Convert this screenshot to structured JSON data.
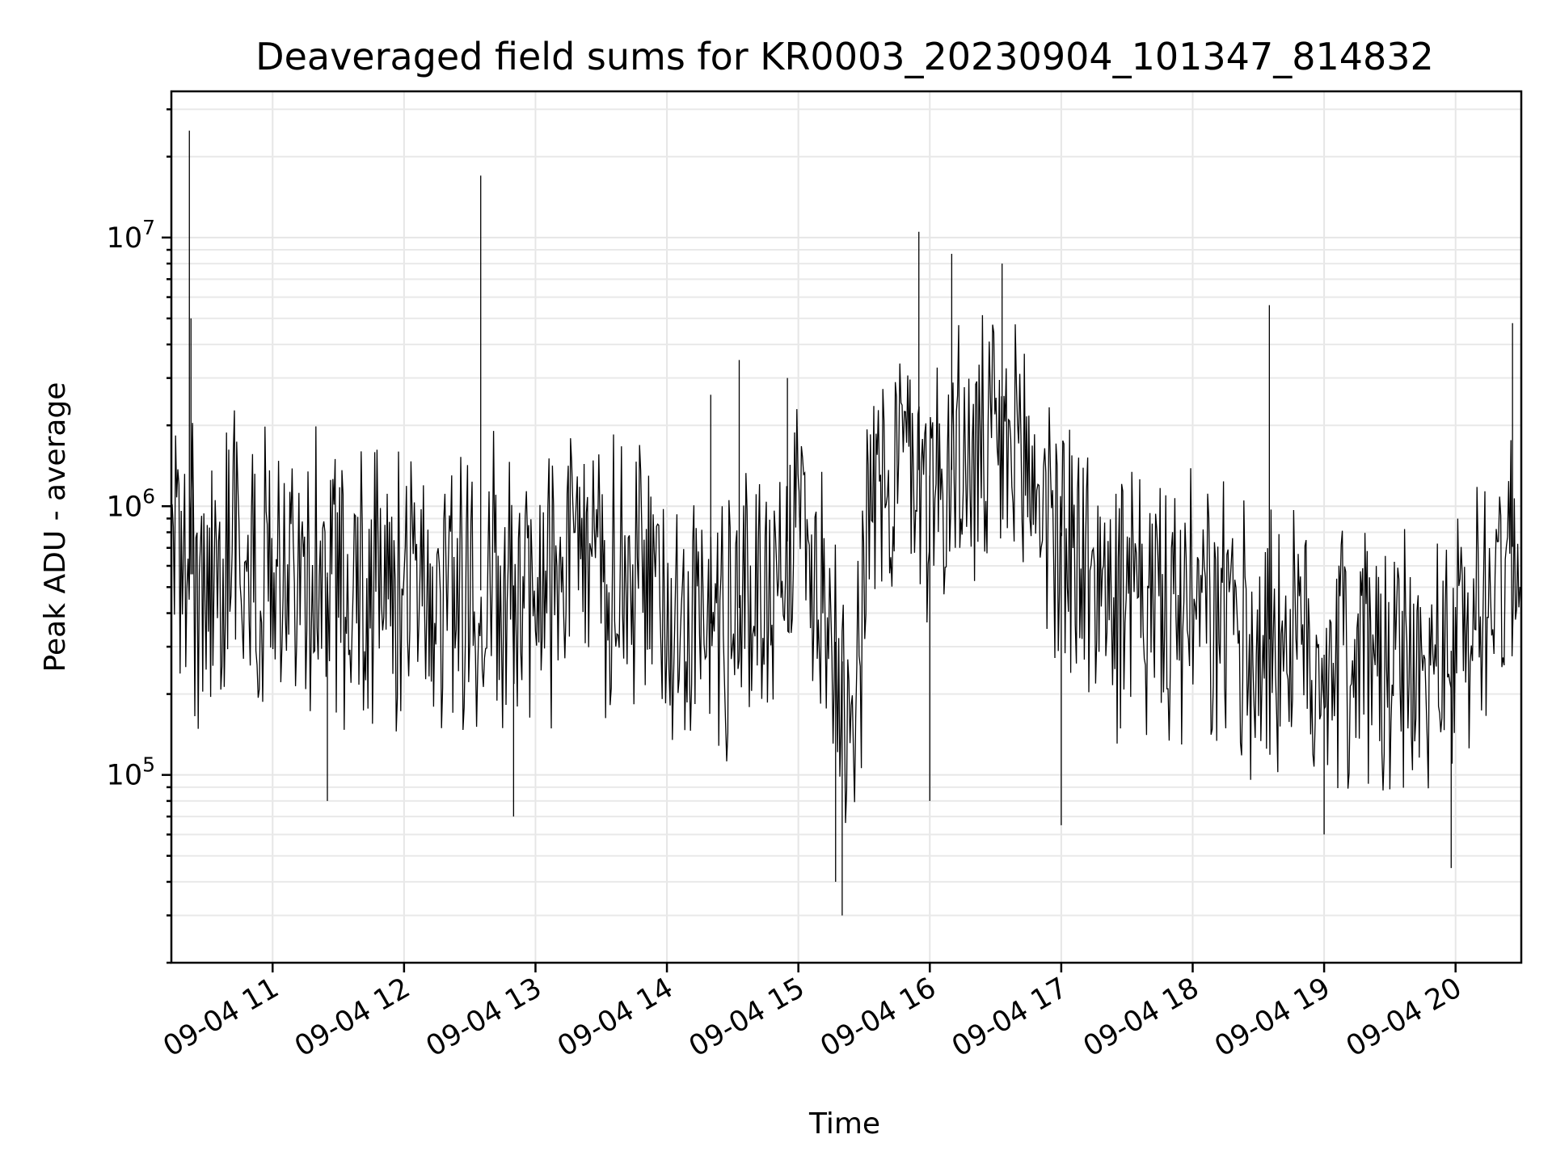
{
  "chart_data": {
    "type": "line",
    "title": "Deaveraged field sums for KR0003_20230904_101347_814832",
    "xlabel": "Time",
    "ylabel": "Peak ADU - average",
    "yscale": "log",
    "grid": true,
    "x_range": [
      "2023-09-04T10:13:47",
      "2023-09-04T20:30:00"
    ],
    "ylim": [
      20000,
      35000000
    ],
    "x_ticks": [
      {
        "time": "2023-09-04T11:00",
        "label": "09-04 11"
      },
      {
        "time": "2023-09-04T12:00",
        "label": "09-04 12"
      },
      {
        "time": "2023-09-04T13:00",
        "label": "09-04 13"
      },
      {
        "time": "2023-09-04T14:00",
        "label": "09-04 14"
      },
      {
        "time": "2023-09-04T15:00",
        "label": "09-04 15"
      },
      {
        "time": "2023-09-04T16:00",
        "label": "09-04 16"
      },
      {
        "time": "2023-09-04T17:00",
        "label": "09-04 17"
      },
      {
        "time": "2023-09-04T18:00",
        "label": "09-04 18"
      },
      {
        "time": "2023-09-04T19:00",
        "label": "09-04 19"
      },
      {
        "time": "2023-09-04T20:00",
        "label": "09-04 20"
      }
    ],
    "y_ticks": [
      {
        "value": 100000,
        "base": "10",
        "exp": "5"
      },
      {
        "value": 1000000,
        "base": "10",
        "exp": "6"
      },
      {
        "value": 10000000,
        "base": "10",
        "exp": "7"
      }
    ],
    "series": [
      {
        "color": "#000000",
        "x": [
          "2023-09-04T10:15",
          "2023-09-04T10:20",
          "2023-09-04T10:25",
          "2023-09-04T10:30",
          "2023-09-04T10:40",
          "2023-09-04T10:50",
          "2023-09-04T11:00",
          "2023-09-04T11:15",
          "2023-09-04T11:30",
          "2023-09-04T11:45",
          "2023-09-04T12:00",
          "2023-09-04T12:15",
          "2023-09-04T12:30",
          "2023-09-04T12:45",
          "2023-09-04T13:00",
          "2023-09-04T13:15",
          "2023-09-04T13:30",
          "2023-09-04T13:45",
          "2023-09-04T14:00",
          "2023-09-04T14:15",
          "2023-09-04T14:30",
          "2023-09-04T14:45",
          "2023-09-04T15:00",
          "2023-09-04T15:15",
          "2023-09-04T15:25",
          "2023-09-04T15:35",
          "2023-09-04T15:45",
          "2023-09-04T16:00",
          "2023-09-04T16:15",
          "2023-09-04T16:30",
          "2023-09-04T16:45",
          "2023-09-04T17:00",
          "2023-09-04T17:15",
          "2023-09-04T17:30",
          "2023-09-04T17:45",
          "2023-09-04T18:00",
          "2023-09-04T18:15",
          "2023-09-04T18:30",
          "2023-09-04T18:45",
          "2023-09-04T19:00",
          "2023-09-04T19:15",
          "2023-09-04T19:30",
          "2023-09-04T19:45",
          "2023-09-04T20:00",
          "2023-09-04T20:15",
          "2023-09-04T20:30"
        ],
        "values": [
          700000,
          600000,
          500000,
          450000,
          800000,
          600000,
          550000,
          600000,
          550000,
          500000,
          500000,
          550000,
          480000,
          500000,
          520000,
          600000,
          550000,
          500000,
          480000,
          350000,
          400000,
          500000,
          900000,
          350000,
          200000,
          1200000,
          1500000,
          1300000,
          1400000,
          1500000,
          1400000,
          800000,
          500000,
          450000,
          400000,
          380000,
          350000,
          330000,
          300000,
          280000,
          300000,
          250000,
          230000,
          300000,
          500000,
          800000
        ],
        "spikes": [
          {
            "x": "2023-09-04T10:22",
            "values": [
              25000000,
              5000000,
              2000000
            ]
          },
          {
            "x": "2023-09-04T12:35",
            "values": [
              17000000
            ]
          },
          {
            "x": "2023-09-04T14:20",
            "values": [
              2600000
            ]
          },
          {
            "x": "2023-09-04T14:33",
            "values": [
              3500000
            ]
          },
          {
            "x": "2023-09-04T14:55",
            "values": [
              3000000
            ]
          },
          {
            "x": "2023-09-04T15:55",
            "values": [
              10500000
            ]
          },
          {
            "x": "2023-09-04T16:10",
            "values": [
              8700000
            ]
          },
          {
            "x": "2023-09-04T16:33",
            "values": [
              8000000
            ]
          },
          {
            "x": "2023-09-04T18:35",
            "values": [
              5600000
            ]
          },
          {
            "x": "2023-09-04T20:26",
            "values": [
              4800000
            ]
          }
        ],
        "dips": [
          {
            "x": "2023-09-04T11:25",
            "values": [
              80000
            ]
          },
          {
            "x": "2023-09-04T12:50",
            "values": [
              70000
            ]
          },
          {
            "x": "2023-09-04T15:17",
            "values": [
              40000
            ]
          },
          {
            "x": "2023-09-04T15:20",
            "values": [
              30000
            ]
          },
          {
            "x": "2023-09-04T16:00",
            "values": [
              80000
            ]
          },
          {
            "x": "2023-09-04T17:00",
            "values": [
              65000
            ]
          },
          {
            "x": "2023-09-04T19:00",
            "values": [
              60000
            ]
          },
          {
            "x": "2023-09-04T19:58",
            "values": [
              45000
            ]
          }
        ]
      }
    ]
  }
}
